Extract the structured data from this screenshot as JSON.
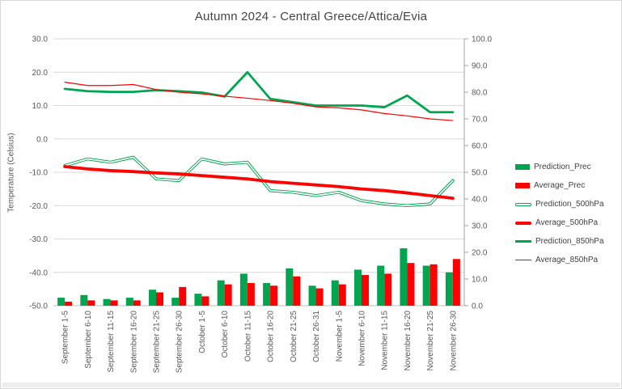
{
  "window": {
    "background": "#ffffff",
    "border_color": "#d9d9d9",
    "bottom_bar_color": "#ededed"
  },
  "colors": {
    "green": "#00a550",
    "red": "#ff0000",
    "grid": "#d9d9d9",
    "axis_line": "#a6a6a6",
    "axis_line_light": "#bfbfbf",
    "tick_text": "#595959",
    "title_text": "#444444",
    "legend_text": "#404040"
  },
  "chart_data": {
    "type": "combo-bar-line-dual-axis",
    "title": "Autumn 2024 - Central Greece/Attica/Evia",
    "grid": "horizontal",
    "legend_position": "right",
    "y_left": {
      "label": "Temperature (Celsius)",
      "min": -50,
      "max": 30,
      "step": 10,
      "ticks": [
        "30.0",
        "20.0",
        "10.0",
        "0.0",
        "-10.0",
        "-20.0",
        "-30.0",
        "-40.0",
        "-50.0"
      ]
    },
    "y_right": {
      "min": 0,
      "max": 100,
      "step": 10,
      "ticks": [
        "100.0",
        "90.0",
        "80.0",
        "70.0",
        "60.0",
        "50.0",
        "40.0",
        "30.0",
        "20.0",
        "10.0",
        "0.0"
      ]
    },
    "categories": [
      "September 1-5",
      "September 6-10",
      "September 11-15",
      "September 16-20",
      "September 21-25",
      "September 26-30",
      "October 1-5",
      "October 6-10",
      "October 11-15",
      "October 16-20",
      "October 21-25",
      "October 26-31",
      "November 1-5",
      "November 6-10",
      "November 11-15",
      "November 16-20",
      "November 21-25",
      "November 26-30"
    ],
    "series": [
      {
        "name": "Prediction_Prec",
        "type": "bar",
        "axis": "right",
        "color": "#00a550",
        "style": "bar",
        "values": [
          3,
          4,
          2.5,
          3,
          6,
          3,
          4.5,
          9.5,
          12,
          8.5,
          14,
          7.5,
          9.5,
          13.5,
          15,
          21.5,
          15,
          12.5
        ]
      },
      {
        "name": "Average_Prec",
        "type": "bar",
        "axis": "right",
        "color": "#ff0000",
        "style": "bar",
        "values": [
          1.5,
          2,
          2,
          2,
          5,
          7,
          3.5,
          8,
          8.5,
          7.5,
          11,
          6.5,
          8,
          11.5,
          12,
          16,
          15.5,
          17.5
        ]
      },
      {
        "name": "Prediction_500hPa",
        "type": "line",
        "axis": "left",
        "color": "#00a550",
        "style": "double",
        "values": [
          -8,
          -6,
          -7,
          -5.5,
          -12,
          -12.5,
          -6,
          -7.5,
          -7,
          -15.5,
          -16,
          -17,
          -16,
          -18.5,
          -19.5,
          -20,
          -19.5,
          -12.5
        ]
      },
      {
        "name": "Average_500hPa",
        "type": "line",
        "axis": "left",
        "color": "#ff0000",
        "style": "thick",
        "values": [
          -8.3,
          -9,
          -9.5,
          -9.8,
          -10.2,
          -10.5,
          -11,
          -11.5,
          -12,
          -12.8,
          -13.3,
          -13.8,
          -14.3,
          -15,
          -15.5,
          -16.2,
          -17,
          -17.8
        ]
      },
      {
        "name": "Prediction_850hPa",
        "type": "line",
        "axis": "left",
        "color": "#00a550",
        "style": "medium",
        "values": [
          15,
          14.3,
          14.1,
          14.1,
          14.6,
          14.3,
          13.9,
          12.7,
          20,
          12,
          11,
          10,
          10,
          10,
          9.5,
          13,
          8,
          8
        ]
      },
      {
        "name": "Average_850hPa",
        "type": "line",
        "axis": "left",
        "color": "#ff0000",
        "style": "thin",
        "values": [
          17,
          16,
          16,
          16.3,
          14.8,
          14,
          13.5,
          12.8,
          12.2,
          11.5,
          10.7,
          9.6,
          9.3,
          8.7,
          7.6,
          6.9,
          6,
          5.5
        ]
      }
    ]
  }
}
